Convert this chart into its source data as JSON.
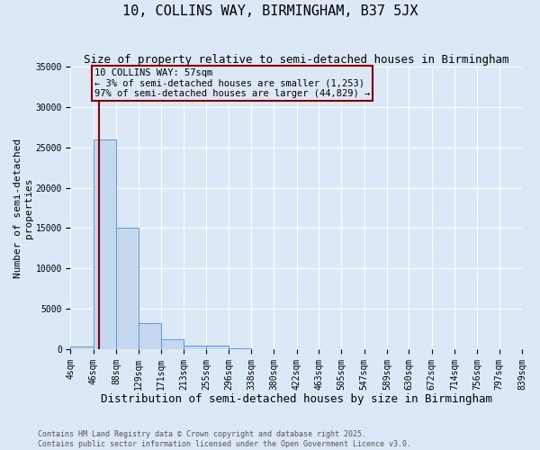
{
  "title": "10, COLLINS WAY, BIRMINGHAM, B37 5JX",
  "subtitle": "Size of property relative to semi-detached houses in Birmingham",
  "xlabel": "Distribution of semi-detached houses by size in Birmingham",
  "ylabel": "Number of semi-detached\nproperties",
  "footnote1": "Contains HM Land Registry data © Crown copyright and database right 2025.",
  "footnote2": "Contains public sector information licensed under the Open Government Licence v3.0.",
  "bin_labels": [
    "4sqm",
    "46sqm",
    "88sqm",
    "129sqm",
    "171sqm",
    "213sqm",
    "255sqm",
    "296sqm",
    "338sqm",
    "380sqm",
    "422sqm",
    "463sqm",
    "505sqm",
    "547sqm",
    "589sqm",
    "630sqm",
    "672sqm",
    "714sqm",
    "756sqm",
    "797sqm",
    "839sqm"
  ],
  "bin_edges": [
    4,
    46,
    88,
    129,
    171,
    213,
    255,
    296,
    338,
    380,
    422,
    463,
    505,
    547,
    589,
    630,
    672,
    714,
    756,
    797,
    839
  ],
  "bar_values": [
    300,
    26000,
    15000,
    3200,
    1200,
    450,
    450,
    100,
    0,
    0,
    0,
    0,
    0,
    0,
    0,
    0,
    0,
    0,
    0,
    0
  ],
  "bar_color": "#c5d8f0",
  "bar_edge_color": "#5b9bd5",
  "ylim": [
    0,
    35000
  ],
  "yticks": [
    0,
    5000,
    10000,
    15000,
    20000,
    25000,
    30000,
    35000
  ],
  "property_size": 57,
  "vline_color": "#8b0000",
  "annotation_line1": "10 COLLINS WAY: 57sqm",
  "annotation_line2": "← 3% of semi-detached houses are smaller (1,253)",
  "annotation_line3": "97% of semi-detached houses are larger (44,829) →",
  "annotation_box_color": "#8b0000",
  "bg_color": "#dce8f5",
  "grid_color": "#ffffff",
  "title_fontsize": 11,
  "subtitle_fontsize": 9,
  "axis_label_fontsize": 8,
  "tick_fontsize": 7,
  "annotation_fontsize": 7.5,
  "footnote_fontsize": 6
}
